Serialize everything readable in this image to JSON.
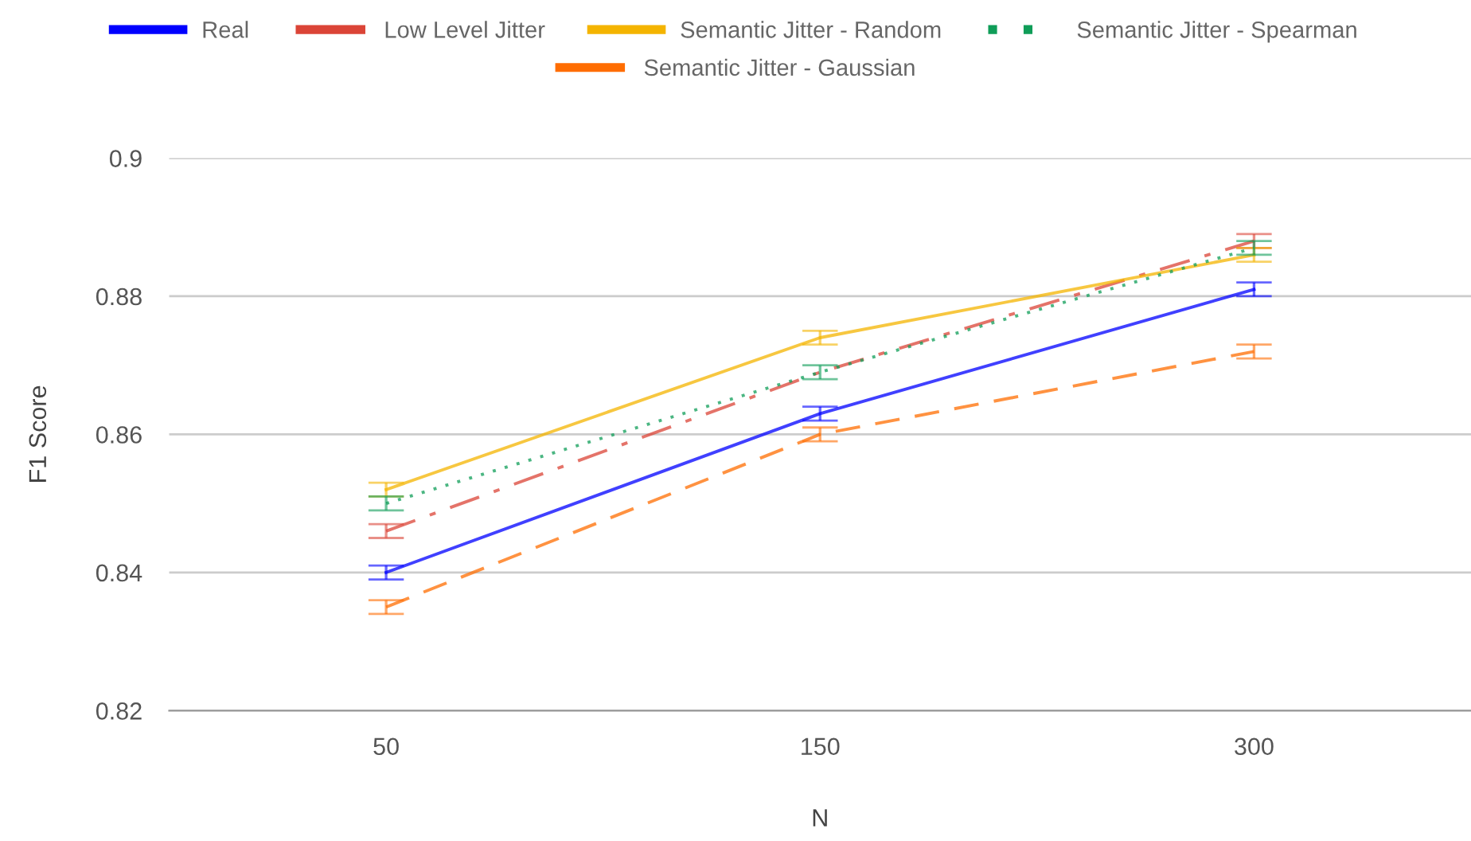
{
  "chart_data": {
    "type": "line",
    "xlabel": "N",
    "ylabel": "F1 Score",
    "categories": [
      "50",
      "150",
      "300"
    ],
    "series": [
      {
        "name": "Real",
        "color": "#0000ff",
        "line_style": "solid",
        "values": [
          0.84,
          0.863,
          0.881
        ],
        "errors": [
          0.001,
          0.001,
          0.001
        ]
      },
      {
        "name": "Low Level Jitter",
        "color": "#db4437",
        "line_style": "dashdot",
        "values": [
          0.846,
          0.869,
          0.888
        ],
        "errors": [
          0.001,
          null,
          0.001
        ]
      },
      {
        "name": "Semantic Jitter - Random",
        "color": "#f4b400",
        "line_style": "solid",
        "values": [
          0.852,
          0.874,
          0.886
        ],
        "errors": [
          0.001,
          0.001,
          0.001
        ]
      },
      {
        "name": "Semantic Jitter - Spearman",
        "color": "#0f9d58",
        "line_style": "dotted",
        "values": [
          0.85,
          0.869,
          0.887
        ],
        "errors": [
          0.001,
          0.001,
          0.001
        ]
      },
      {
        "name": "Semantic Jitter - Gaussian",
        "color": "#ff6d01",
        "line_style": "dashed",
        "values": [
          0.835,
          0.86,
          0.872
        ],
        "errors": [
          0.001,
          0.001,
          0.001
        ]
      }
    ],
    "ylim": [
      0.82,
      0.9
    ],
    "yticks": [
      0.82,
      0.84,
      0.86,
      0.88,
      {
        "value": 0.9,
        "label": "0.9"
      }
    ],
    "grid": "y",
    "legend": "top",
    "marker": "none"
  }
}
